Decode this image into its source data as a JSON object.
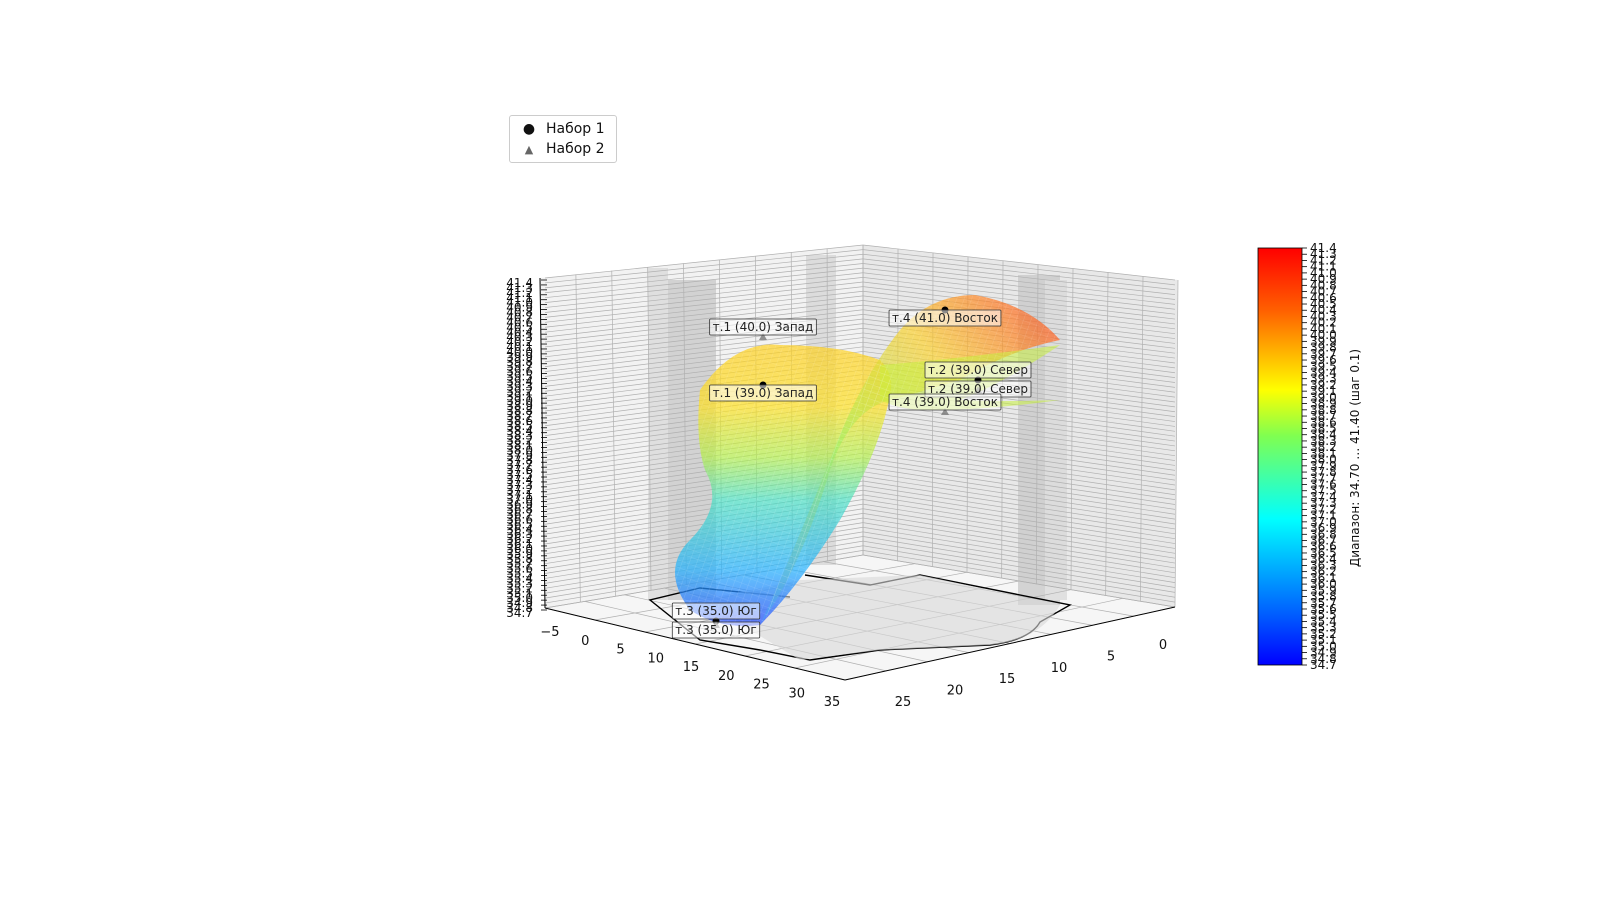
{
  "chart_data": {
    "type": "surface3d",
    "xlabel": "",
    "ylabel": "",
    "zlabel": "",
    "x_ticks": [
      "−5",
      "0",
      "5",
      "10",
      "15",
      "20",
      "25",
      "30",
      "35"
    ],
    "y_ticks": [
      "0",
      "5",
      "10",
      "15",
      "20",
      "25"
    ],
    "z_ticks": [
      "34.7",
      "34.8",
      "34.9",
      "35.0",
      "35.1",
      "35.2",
      "35.3",
      "35.4",
      "35.5",
      "35.6",
      "35.7",
      "35.8",
      "35.9",
      "36.0",
      "36.1",
      "36.2",
      "36.3",
      "36.4",
      "36.5",
      "36.6",
      "36.7",
      "36.8",
      "36.9",
      "37.0",
      "37.1",
      "37.2",
      "37.3",
      "37.4",
      "37.5",
      "37.6",
      "37.7",
      "37.8",
      "37.9",
      "38.0",
      "38.1",
      "38.2",
      "38.3",
      "38.4",
      "38.5",
      "38.6",
      "38.7",
      "38.8",
      "38.9",
      "39.0",
      "39.1",
      "39.2",
      "39.3",
      "39.4",
      "39.5",
      "39.6",
      "39.7",
      "39.8",
      "39.9",
      "40.0",
      "40.1",
      "40.2",
      "40.3",
      "40.4",
      "40.5",
      "40.6",
      "40.7",
      "40.8",
      "40.9",
      "41.0",
      "41.1",
      "41.2",
      "41.3",
      "41.4"
    ],
    "zlim": [
      34.7,
      41.4
    ],
    "colormap": "jet",
    "colorbar": {
      "label": "Диапазон: 34.70 … 41.40 (шаг 0.1)",
      "min": 34.7,
      "max": 41.4
    },
    "legend": {
      "placement": "top-left",
      "entries": [
        {
          "name": "Набор 1",
          "marker": "circle",
          "color": "#000000"
        },
        {
          "name": "Набор 2",
          "marker": "triangle",
          "color": "#555555"
        }
      ]
    },
    "series": [
      {
        "name": "Набор 1",
        "points": [
          {
            "label": "т.4 (41.0) Восток",
            "value": 41.0
          },
          {
            "label": "т.2 (39.0) Север",
            "value": 39.0
          },
          {
            "label": "т.1 (39.0) Запад",
            "value": 39.0
          },
          {
            "label": "т.3 (35.0) Юг",
            "value": 35.0
          }
        ]
      },
      {
        "name": "Набор 2",
        "points": [
          {
            "label": "т.1 (40.0) Запад",
            "value": 40.0
          },
          {
            "label": "т.2 (39.0) Север",
            "value": 39.0
          },
          {
            "label": "т.4 (39.0) Восток",
            "value": 39.0
          },
          {
            "label": "т.3 (35.0) Юг",
            "value": 35.0
          }
        ]
      }
    ]
  }
}
